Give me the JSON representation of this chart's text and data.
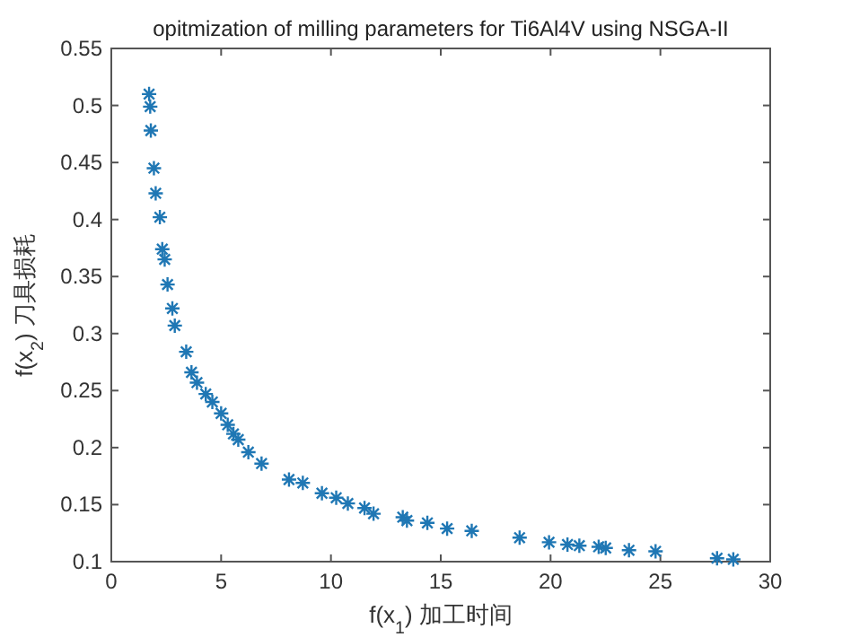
{
  "chart_data": {
    "type": "scatter",
    "title": "opitmization of milling parameters for Ti6Al4V using NSGA-II",
    "xlabel": "f(x$_{1}$) 加工时间",
    "ylabel": "f(x$_{2}$) 刀具损耗",
    "x": [
      1.72,
      1.77,
      1.8,
      1.94,
      2.02,
      2.21,
      2.32,
      2.43,
      2.56,
      2.78,
      2.89,
      3.41,
      3.65,
      3.9,
      4.3,
      4.6,
      5.0,
      5.3,
      5.56,
      5.78,
      6.24,
      6.84,
      8.09,
      8.72,
      9.59,
      10.24,
      10.77,
      11.53,
      11.94,
      13.27,
      13.46,
      14.39,
      15.29,
      16.41,
      18.59,
      19.93,
      20.77,
      21.31,
      22.19,
      22.51,
      23.57,
      24.78,
      27.58,
      28.32
    ],
    "values": [
      0.51,
      0.499,
      0.478,
      0.445,
      0.423,
      0.402,
      0.374,
      0.365,
      0.343,
      0.322,
      0.307,
      0.284,
      0.266,
      0.257,
      0.247,
      0.24,
      0.23,
      0.22,
      0.212,
      0.207,
      0.196,
      0.186,
      0.172,
      0.169,
      0.16,
      0.156,
      0.151,
      0.147,
      0.142,
      0.139,
      0.136,
      0.134,
      0.129,
      0.127,
      0.121,
      0.117,
      0.115,
      0.114,
      0.113,
      0.112,
      0.11,
      0.109,
      0.103,
      0.102
    ],
    "color": "#1f77b4",
    "marker": "cross",
    "grid": false,
    "xlim": [
      0,
      30
    ],
    "ylim": [
      0.1,
      0.55
    ],
    "xticks": [
      0,
      5,
      10,
      15,
      20,
      25,
      30
    ],
    "yticks": [
      0.1,
      0.15,
      0.2,
      0.25,
      0.3,
      0.35,
      0.4,
      0.45,
      0.5,
      0.55
    ]
  }
}
